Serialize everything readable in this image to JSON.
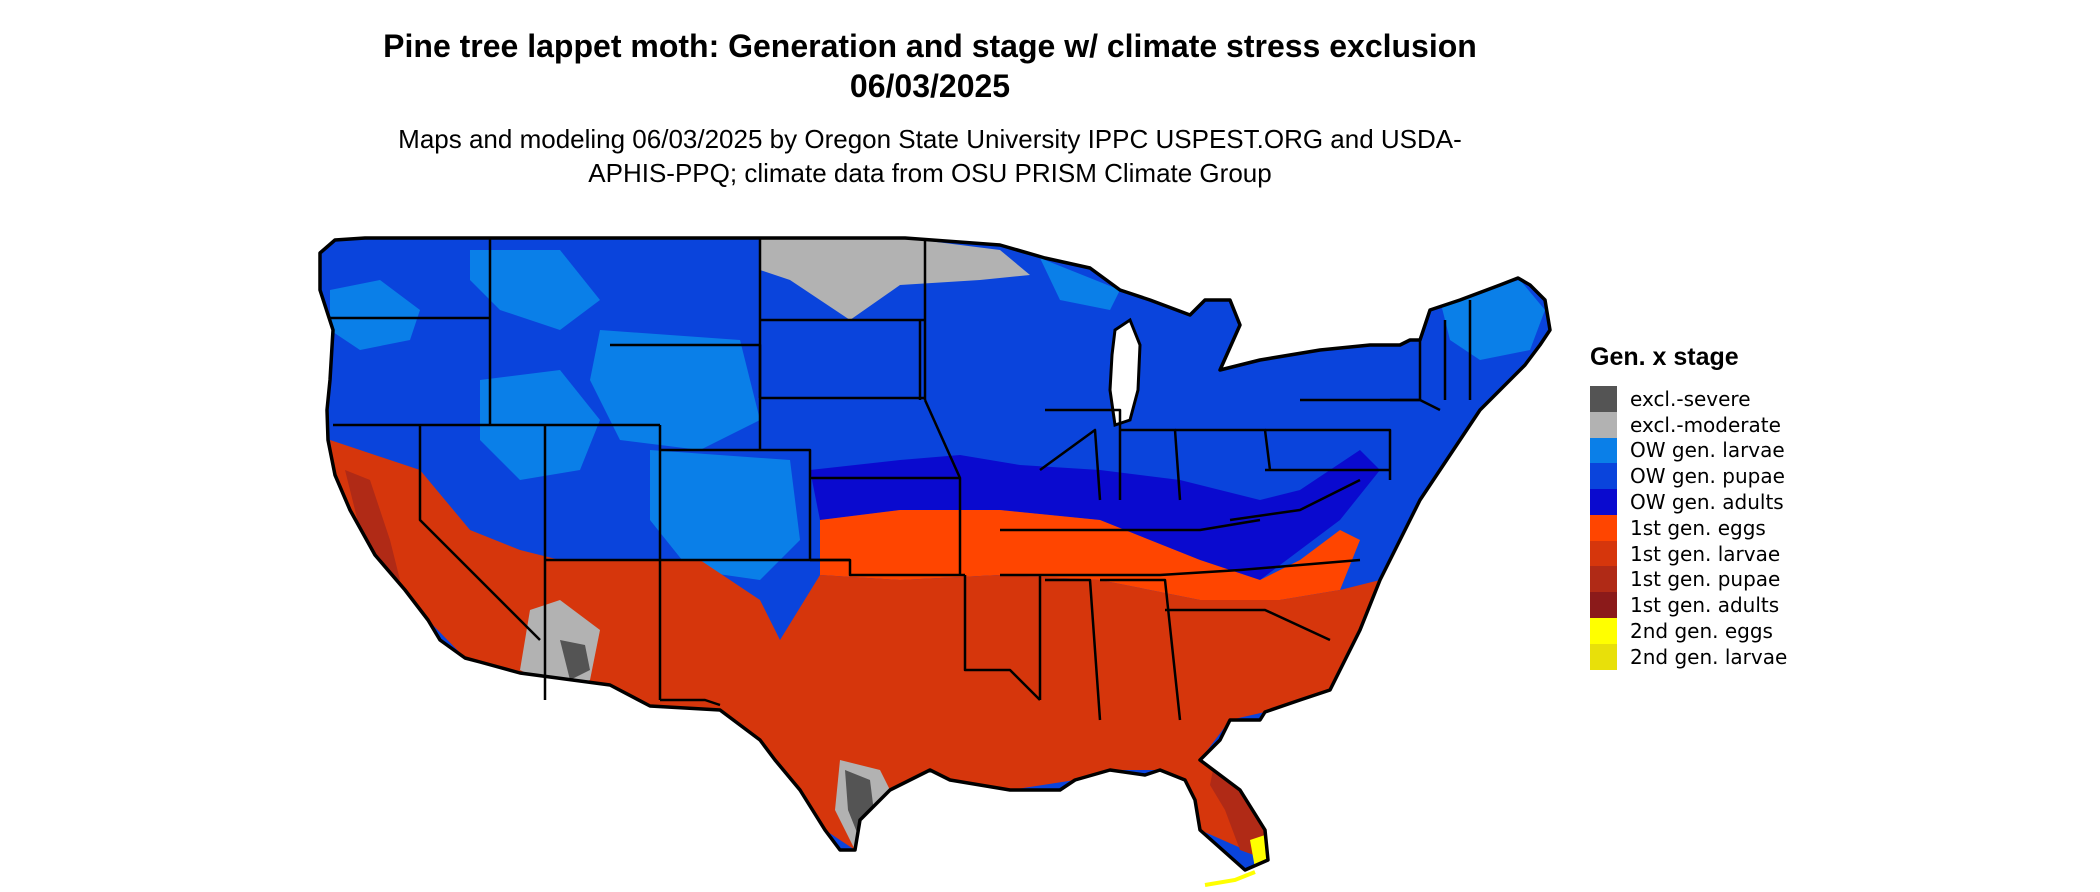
{
  "title": "Pine tree lappet moth: Generation and stage w/ climate stress exclusion 06/03/2025",
  "subtitle": "Maps and modeling 06/03/2025 by Oregon State University IPPC USPEST.ORG and USDA-APHIS-PPQ; climate data from OSU PRISM Climate Group",
  "legend": {
    "title": "Gen. x stage",
    "items": [
      {
        "label": "excl.-severe",
        "color": "#545454"
      },
      {
        "label": "excl.-moderate",
        "color": "#b2b2b2"
      },
      {
        "label": "OW gen. larvae",
        "color": "#0a7fe8"
      },
      {
        "label": "OW gen. pupae",
        "color": "#0a44dc"
      },
      {
        "label": "OW gen. adults",
        "color": "#0a0acf"
      },
      {
        "label": "1st gen. eggs",
        "color": "#ff4500"
      },
      {
        "label": "1st gen. larvae",
        "color": "#d6360c"
      },
      {
        "label": "1st gen. pupae",
        "color": "#b02a16"
      },
      {
        "label": "1st gen. adults",
        "color": "#8b1a1a"
      },
      {
        "label": "2nd gen. eggs",
        "color": "#ffff00"
      },
      {
        "label": "2nd gen. larvae",
        "color": "#e8e00a"
      }
    ]
  }
}
